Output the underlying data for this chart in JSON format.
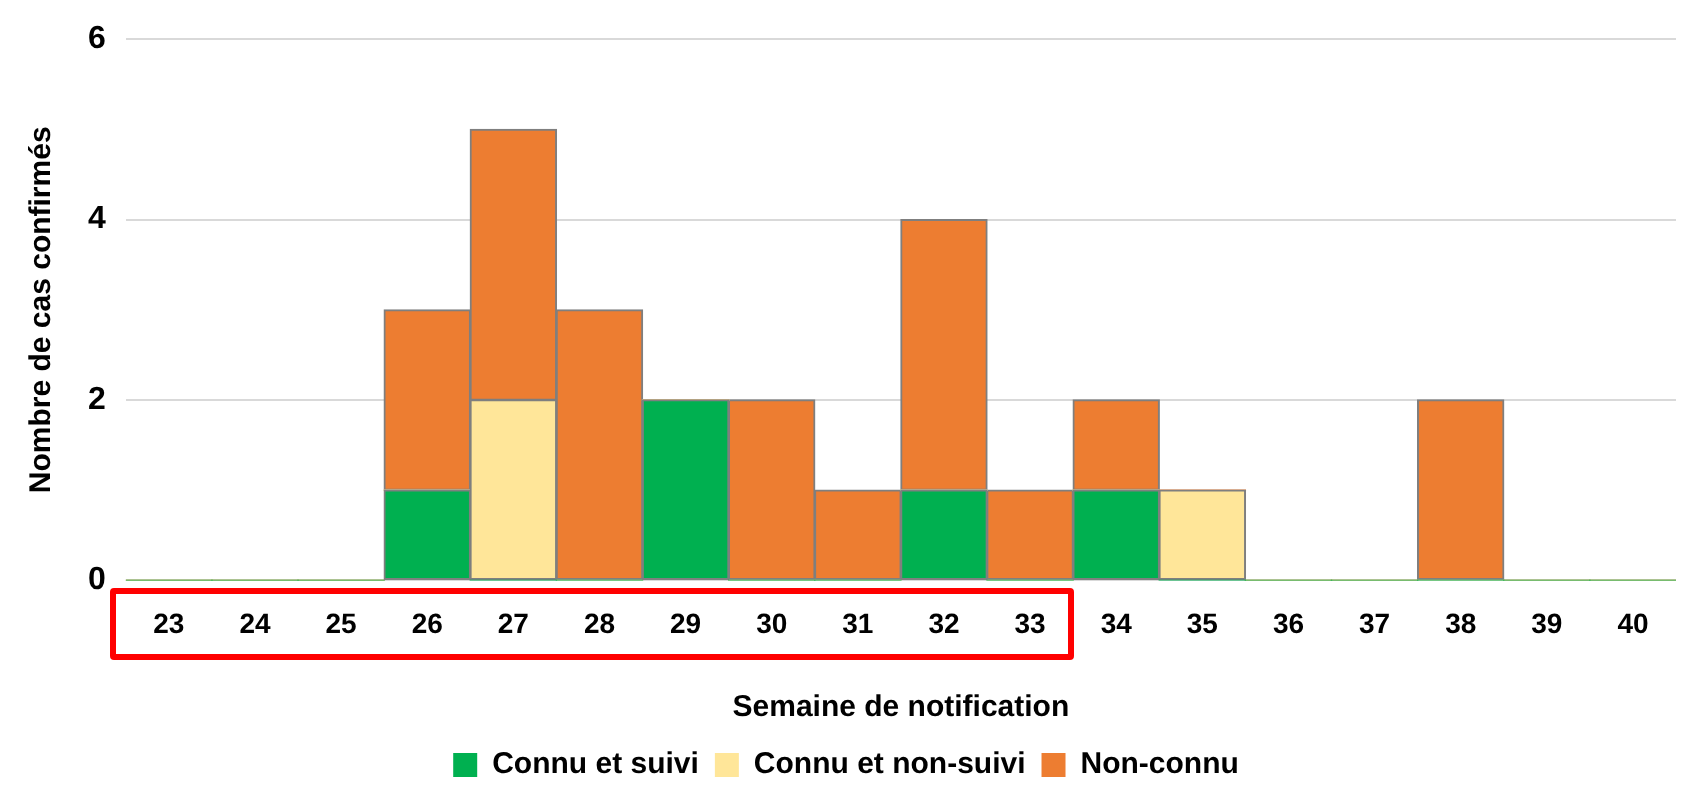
{
  "chart_data": {
    "type": "bar",
    "stacked": true,
    "xlabel": "Semaine de notification",
    "ylabel": "Nombre de cas confirmés",
    "categories": [
      "23",
      "24",
      "25",
      "26",
      "27",
      "28",
      "29",
      "30",
      "31",
      "32",
      "33",
      "34",
      "35",
      "36",
      "37",
      "38",
      "39",
      "40"
    ],
    "series": [
      {
        "name": "Connu et suivi",
        "color": "#00b050",
        "values": [
          0,
          0,
          0,
          1,
          0,
          0,
          2,
          0,
          0,
          1,
          0,
          1,
          0,
          0,
          0,
          0,
          0,
          0
        ]
      },
      {
        "name": "Connu et non-suivi",
        "color": "#ffe699",
        "values": [
          0,
          0,
          0,
          0,
          2,
          0,
          0,
          0,
          0,
          0,
          0,
          0,
          1,
          0,
          0,
          0,
          0,
          0
        ]
      },
      {
        "name": "Non-connu",
        "color": "#ed7d31",
        "values": [
          0,
          0,
          0,
          2,
          3,
          3,
          0,
          2,
          1,
          3,
          1,
          1,
          0,
          0,
          0,
          2,
          0,
          0
        ]
      }
    ],
    "ylim": [
      0,
      6
    ],
    "yticks": [
      0,
      2,
      4,
      6
    ],
    "grid": "y",
    "legend": "bottom"
  }
}
